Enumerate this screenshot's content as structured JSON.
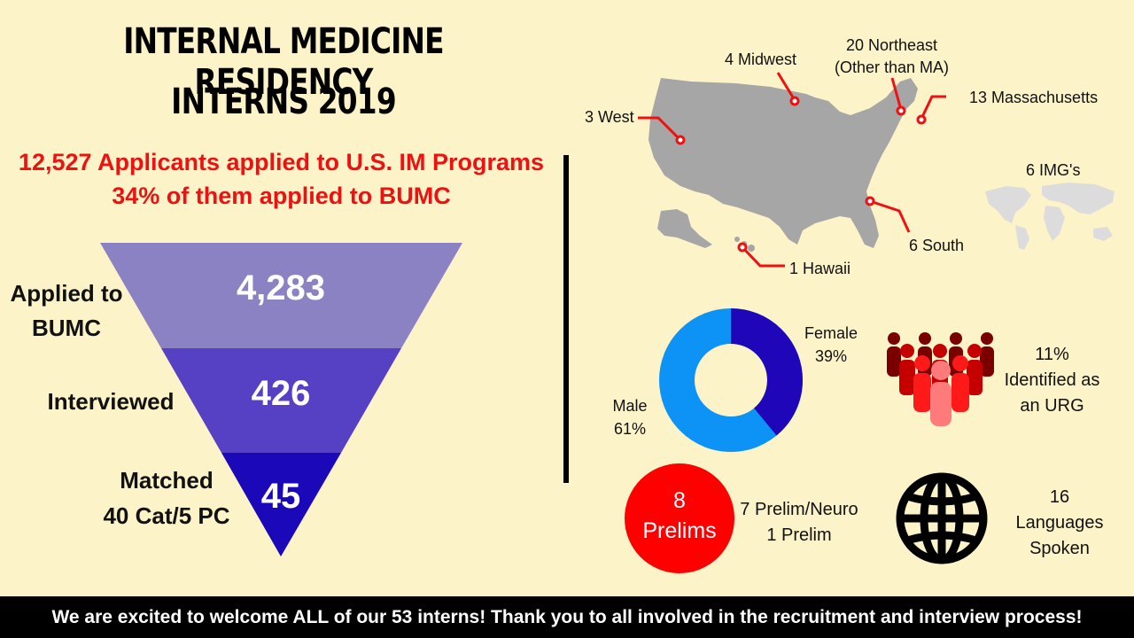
{
  "title": {
    "line1": "INTERNAL MEDICINE RESIDENCY",
    "line2": "INTERNS 2019"
  },
  "headline": {
    "line1": "12,527 Applicants applied to U.S. IM Programs",
    "line2": "34% of them applied to BUMC"
  },
  "funnel": {
    "stages": [
      {
        "value": "4,283",
        "label": "Applied to BUMC",
        "color": "#8a82c2"
      },
      {
        "value": "426",
        "label": "Interviewed",
        "color": "#5641c4"
      },
      {
        "value": "45",
        "label_line1": "Matched",
        "label_line2": "40 Cat/5 PC",
        "color": "#1b08b8"
      }
    ]
  },
  "map": {
    "regions": {
      "west": "3 West",
      "midwest": "4 Midwest",
      "northeast_line1": "20 Northeast",
      "northeast_line2": "(Other than MA)",
      "massachusetts": "13 Massachusetts",
      "south": "6 South",
      "hawaii": "1 Hawaii",
      "imgs": "6 IMG's"
    },
    "marker_color": "#ee1111",
    "map_color": "#a6a6a6",
    "world_color": "#dcdcdc"
  },
  "gender": {
    "female_label": "Female",
    "female_pct": "39%",
    "male_label": "Male",
    "male_pct": "61%",
    "female_value": 39,
    "male_value": 61,
    "female_color": "#1f06b8",
    "male_color": "#0c93f5"
  },
  "urg": {
    "line1": "11%",
    "line2": "Identified as",
    "line3": "an URG",
    "icon": "group-of-people-icon"
  },
  "prelims": {
    "circle_number": "8",
    "circle_label": "Prelims",
    "detail_line1": "7 Prelim/Neuro",
    "detail_line2": "1 Prelim"
  },
  "languages": {
    "line1": "16",
    "line2": "Languages",
    "line3": "Spoken",
    "icon": "globe-icon"
  },
  "footer": "We are excited to welcome ALL of our 53 interns! Thank you to all involved in the recruitment and interview process!"
}
